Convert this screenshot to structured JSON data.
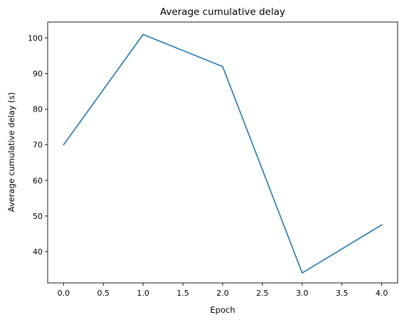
{
  "chart_data": {
    "type": "line",
    "title": "Average cumulative delay",
    "xlabel": "Epoch",
    "ylabel": "Average cumulative delay (s)",
    "xlim": [
      -0.2,
      4.2
    ],
    "ylim": [
      31.2,
      104.5
    ],
    "xticks": [
      "0.0",
      "0.5",
      "1.0",
      "1.5",
      "2.0",
      "2.5",
      "3.0",
      "3.5",
      "4.0"
    ],
    "yticks": [
      "40",
      "50",
      "60",
      "70",
      "80",
      "90",
      "100"
    ],
    "grid": false,
    "series": [
      {
        "color": "#1f77b4",
        "x": [
          0,
          1,
          2,
          3,
          4
        ],
        "y": [
          70,
          101,
          92,
          34,
          47.5
        ]
      }
    ]
  }
}
